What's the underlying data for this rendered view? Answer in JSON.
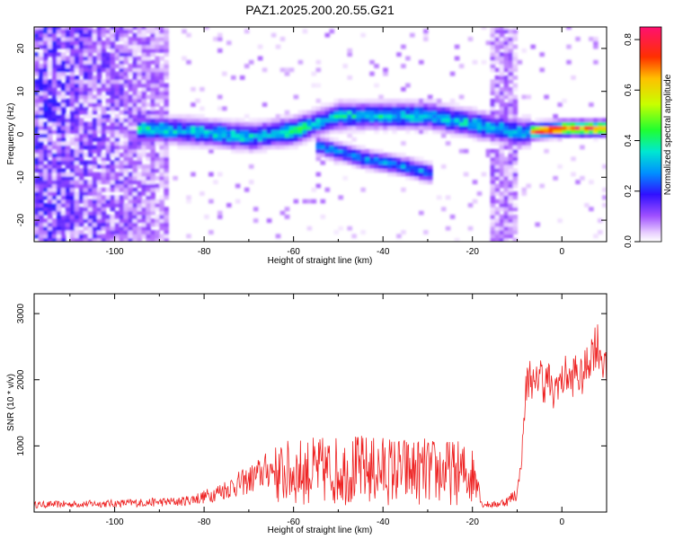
{
  "chart_data": [
    {
      "type": "heatmap",
      "title": "PAZ1.2025.200.20.55.G21",
      "xlabel": "Height of straight line (km)",
      "ylabel": "Frequency (Hz)",
      "xlim": [
        -118,
        10
      ],
      "ylim": [
        -25,
        25
      ],
      "xticks": [
        -100,
        -80,
        -60,
        -40,
        -20,
        0
      ],
      "xtick_labels": [
        "-100",
        "-80",
        "-60",
        "-40",
        "-20",
        "0"
      ],
      "yticks": [
        -20,
        -10,
        0,
        10,
        20
      ],
      "ytick_labels": [
        "-20",
        "-10",
        "0",
        "10",
        "20"
      ],
      "colorbar": {
        "label": "Normalized spectral amplitude",
        "range": [
          0,
          0.85
        ],
        "ticks": [
          0.0,
          0.2,
          0.4,
          0.6,
          0.8
        ],
        "tick_labels": [
          "0.0",
          "0.2",
          "0.4",
          "0.6",
          "0.8"
        ],
        "colormap": "rainbow (light violet to magenta)"
      },
      "features": [
        {
          "name": "main ridge",
          "x": [
            -95,
            -80,
            -70,
            -60,
            -50,
            -40,
            -30,
            -20,
            -10,
            0,
            10
          ],
          "y": [
            1,
            0,
            -1,
            0.5,
            4,
            4,
            4,
            2,
            0,
            1,
            1
          ]
        },
        {
          "name": "lower branch",
          "x": [
            -55,
            -45,
            -40,
            -35,
            -30
          ],
          "y": [
            -3,
            -6,
            -7,
            -8,
            -9.5
          ]
        }
      ]
    },
    {
      "type": "line",
      "title": "",
      "xlabel": "Height of straight line (km)",
      "ylabel": "SNR (10 * v/v)",
      "xlim": [
        -118,
        10
      ],
      "ylim": [
        0,
        3300
      ],
      "xticks": [
        -100,
        -80,
        -60,
        -40,
        -20,
        0
      ],
      "xtick_labels": [
        "-100",
        "-80",
        "-60",
        "-40",
        "-20",
        "0"
      ],
      "yticks": [
        1000,
        2000,
        3000
      ],
      "ytick_labels": [
        "1000",
        "2000",
        "3000"
      ],
      "line_color": "#ee2222",
      "series": [
        {
          "name": "",
          "x": [
            -118,
            -110,
            -100,
            -95,
            -90,
            -85,
            -80,
            -77,
            -74,
            -70,
            -67,
            -64,
            -62,
            -60,
            -57,
            -55,
            -52,
            -50,
            -47,
            -45,
            -42,
            -40,
            -37,
            -35,
            -32,
            -30,
            -27,
            -25,
            -22,
            -19,
            -18,
            -15,
            -12,
            -10,
            -9,
            -8,
            -7,
            -6,
            -5,
            -4,
            -3,
            -2,
            -1,
            0,
            1,
            2,
            3,
            4,
            5,
            6,
            7,
            8,
            9,
            10
          ],
          "y": [
            110,
            120,
            130,
            140,
            150,
            160,
            230,
            300,
            380,
            480,
            600,
            680,
            720,
            750,
            760,
            770,
            780,
            780,
            790,
            800,
            780,
            790,
            780,
            770,
            760,
            760,
            750,
            740,
            720,
            650,
            120,
            110,
            170,
            300,
            800,
            1900,
            2100,
            1800,
            2200,
            1900,
            2050,
            1700,
            2000,
            1950,
            2100,
            1950,
            2150,
            2000,
            2100,
            2300,
            2500,
            2550,
            2350,
            2050
          ]
        }
      ]
    }
  ]
}
